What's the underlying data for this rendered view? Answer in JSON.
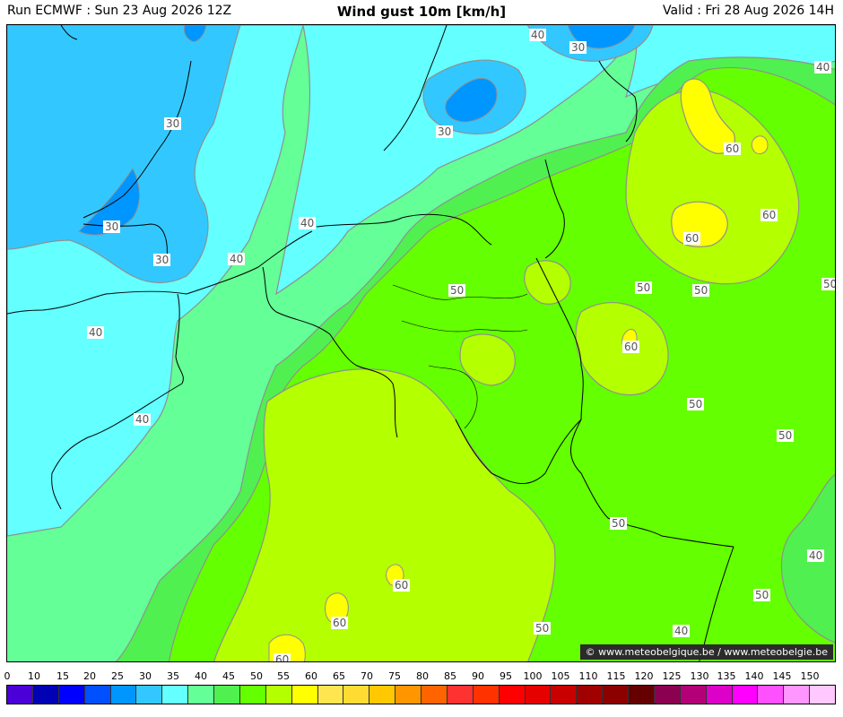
{
  "header": {
    "run": "Run ECMWF : Sun 23 Aug 2026 12Z",
    "title": "Wind gust 10m [km/h]",
    "valid": "Valid : Fri 28 Aug 2026 14H"
  },
  "credit": "© www.meteobelgique.be / www.meteobelgie.be",
  "colorbar": {
    "ticks": [
      "0",
      "10",
      "15",
      "20",
      "25",
      "30",
      "35",
      "40",
      "45",
      "50",
      "55",
      "60",
      "65",
      "70",
      "75",
      "80",
      "85",
      "90",
      "95",
      "100",
      "105",
      "110",
      "115",
      "120",
      "125",
      "130",
      "135",
      "140",
      "145",
      "150"
    ],
    "colors": [
      "#4b00d8",
      "#0000b4",
      "#0000ff",
      "#0050ff",
      "#0096ff",
      "#32c8ff",
      "#64ffff",
      "#64ff96",
      "#50f050",
      "#64ff00",
      "#b4ff00",
      "#ffff00",
      "#ffe650",
      "#ffdc32",
      "#ffc800",
      "#ff9600",
      "#ff6400",
      "#ff3232",
      "#ff3200",
      "#ff0000",
      "#e60000",
      "#c80000",
      "#a00000",
      "#8c0000",
      "#640000",
      "#8c0050",
      "#b40078",
      "#dc00c8",
      "#ff00ff",
      "#ff50ff",
      "#ff96ff",
      "#ffc8ff"
    ]
  },
  "contour_labels": [
    {
      "text": "40"
    },
    {
      "text": "30"
    },
    {
      "text": "40"
    },
    {
      "text": "30"
    },
    {
      "text": "30"
    },
    {
      "text": "30"
    },
    {
      "text": "30"
    },
    {
      "text": "40"
    },
    {
      "text": "40"
    },
    {
      "text": "40"
    },
    {
      "text": "40"
    },
    {
      "text": "60"
    },
    {
      "text": "60"
    },
    {
      "text": "60"
    },
    {
      "text": "50"
    },
    {
      "text": "50"
    },
    {
      "text": "50"
    },
    {
      "text": "50"
    },
    {
      "text": "60"
    },
    {
      "text": "50"
    },
    {
      "text": "50"
    },
    {
      "text": "50"
    },
    {
      "text": "40"
    },
    {
      "text": "50"
    },
    {
      "text": "60"
    },
    {
      "text": "60"
    },
    {
      "text": "60"
    },
    {
      "text": "50"
    },
    {
      "text": "40"
    }
  ]
}
